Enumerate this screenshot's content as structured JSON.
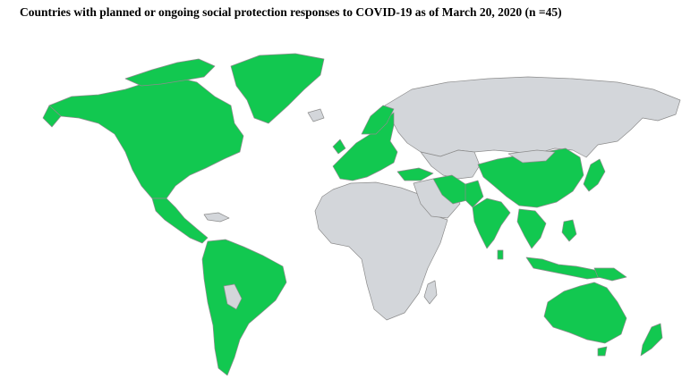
{
  "title": "Countries with planned or ongoing social protection responses to COVID-19 as of March 20, 2020 (n =45)",
  "legend": {
    "colors": {
      "with_response": "#12c850",
      "without_response": "#d3d6da",
      "border": "#8c8c8c",
      "background": "#ffffff"
    }
  },
  "regions": [
    {
      "name": "North America",
      "status": "with_response"
    },
    {
      "name": "Greenland",
      "status": "with_response"
    },
    {
      "name": "Central America",
      "status": "with_response"
    },
    {
      "name": "South America",
      "status": "with_response"
    },
    {
      "name": "Europe",
      "status": "with_response"
    },
    {
      "name": "Russia",
      "status": "without_response"
    },
    {
      "name": "Africa",
      "status": "without_response"
    },
    {
      "name": "Middle East",
      "status": "mixed"
    },
    {
      "name": "India",
      "status": "with_response"
    },
    {
      "name": "China",
      "status": "with_response"
    },
    {
      "name": "Japan",
      "status": "with_response"
    },
    {
      "name": "Southeast Asia",
      "status": "with_response"
    },
    {
      "name": "Australia",
      "status": "with_response"
    },
    {
      "name": "New Zealand",
      "status": "with_response"
    }
  ]
}
